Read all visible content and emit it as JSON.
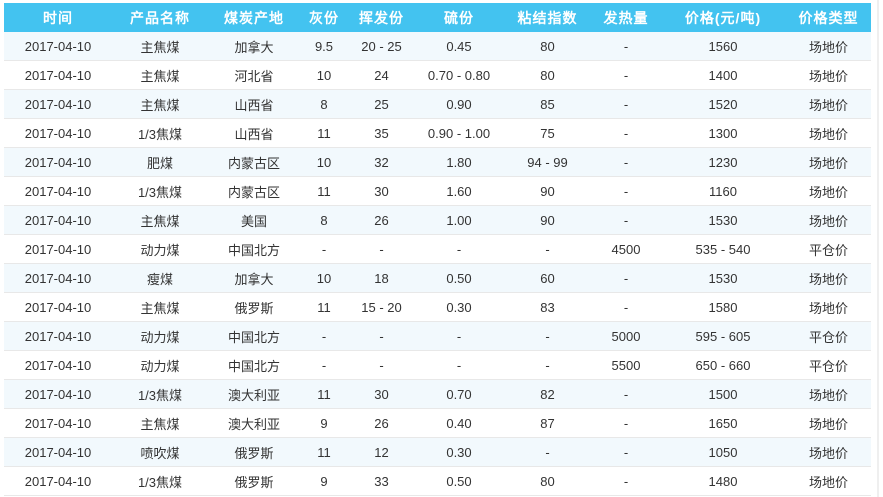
{
  "colors": {
    "header_bg": "#43C3F0",
    "header_text": "#FFFFFF",
    "row_alt_bg": "#F2F9FD",
    "row_bg": "#FFFFFF",
    "row_divider": "#E8E8E8",
    "cell_text": "#333333"
  },
  "table": {
    "columns": [
      {
        "key": "time",
        "label": "时间"
      },
      {
        "key": "product",
        "label": "产品名称"
      },
      {
        "key": "origin",
        "label": "煤炭产地"
      },
      {
        "key": "ash",
        "label": "灰份"
      },
      {
        "key": "volatile",
        "label": "挥发份"
      },
      {
        "key": "sulfur",
        "label": "硫份"
      },
      {
        "key": "caking",
        "label": "粘结指数"
      },
      {
        "key": "calorific",
        "label": "发热量"
      },
      {
        "key": "price",
        "label": "价格(元/吨)"
      },
      {
        "key": "ptype",
        "label": "价格类型"
      }
    ],
    "rows": [
      [
        "2017-04-10",
        "主焦煤",
        "加拿大",
        "9.5",
        "20 - 25",
        "0.45",
        "80",
        "-",
        "1560",
        "场地价"
      ],
      [
        "2017-04-10",
        "主焦煤",
        "河北省",
        "10",
        "24",
        "0.70 - 0.80",
        "80",
        "-",
        "1400",
        "场地价"
      ],
      [
        "2017-04-10",
        "主焦煤",
        "山西省",
        "8",
        "25",
        "0.90",
        "85",
        "-",
        "1520",
        "场地价"
      ],
      [
        "2017-04-10",
        "1/3焦煤",
        "山西省",
        "11",
        "35",
        "0.90 - 1.00",
        "75",
        "-",
        "1300",
        "场地价"
      ],
      [
        "2017-04-10",
        "肥煤",
        "内蒙古区",
        "10",
        "32",
        "1.80",
        "94 - 99",
        "-",
        "1230",
        "场地价"
      ],
      [
        "2017-04-10",
        "1/3焦煤",
        "内蒙古区",
        "11",
        "30",
        "1.60",
        "90",
        "-",
        "1160",
        "场地价"
      ],
      [
        "2017-04-10",
        "主焦煤",
        "美国",
        "8",
        "26",
        "1.00",
        "90",
        "-",
        "1530",
        "场地价"
      ],
      [
        "2017-04-10",
        "动力煤",
        "中国北方",
        "-",
        "-",
        "-",
        "-",
        "4500",
        "535 - 540",
        "平仓价"
      ],
      [
        "2017-04-10",
        "瘦煤",
        "加拿大",
        "10",
        "18",
        "0.50",
        "60",
        "-",
        "1530",
        "场地价"
      ],
      [
        "2017-04-10",
        "主焦煤",
        "俄罗斯",
        "11",
        "15 - 20",
        "0.30",
        "83",
        "-",
        "1580",
        "场地价"
      ],
      [
        "2017-04-10",
        "动力煤",
        "中国北方",
        "-",
        "-",
        "-",
        "-",
        "5000",
        "595 - 605",
        "平仓价"
      ],
      [
        "2017-04-10",
        "动力煤",
        "中国北方",
        "-",
        "-",
        "-",
        "-",
        "5500",
        "650 - 660",
        "平仓价"
      ],
      [
        "2017-04-10",
        "1/3焦煤",
        "澳大利亚",
        "11",
        "30",
        "0.70",
        "82",
        "-",
        "1500",
        "场地价"
      ],
      [
        "2017-04-10",
        "主焦煤",
        "澳大利亚",
        "9",
        "26",
        "0.40",
        "87",
        "-",
        "1650",
        "场地价"
      ],
      [
        "2017-04-10",
        "喷吹煤",
        "俄罗斯",
        "11",
        "12",
        "0.30",
        "-",
        "-",
        "1050",
        "场地价"
      ],
      [
        "2017-04-10",
        "1/3焦煤",
        "俄罗斯",
        "9",
        "33",
        "0.50",
        "80",
        "-",
        "1480",
        "场地价"
      ]
    ]
  }
}
